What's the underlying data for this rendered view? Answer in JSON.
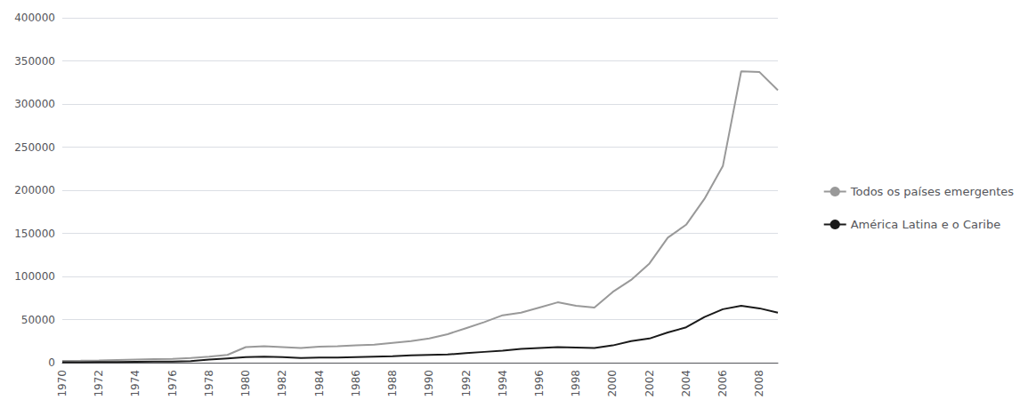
{
  "chart_data": {
    "type": "line",
    "x": [
      1970,
      1971,
      1972,
      1973,
      1974,
      1975,
      1976,
      1977,
      1978,
      1979,
      1980,
      1981,
      1982,
      1983,
      1984,
      1985,
      1986,
      1987,
      1988,
      1989,
      1990,
      1991,
      1992,
      1993,
      1994,
      1995,
      1996,
      1997,
      1998,
      1999,
      2000,
      2001,
      2002,
      2003,
      2004,
      2005,
      2006,
      2007,
      2008,
      2009
    ],
    "series": [
      {
        "name": "Todos os países emergentes",
        "color": "#999999",
        "values": [
          2000,
          2200,
          2500,
          3000,
          3500,
          4000,
          4500,
          5500,
          7000,
          9000,
          18000,
          19000,
          18000,
          17000,
          18500,
          19000,
          20000,
          21000,
          23000,
          25000,
          28000,
          33000,
          40000,
          47000,
          55000,
          58000,
          64000,
          70000,
          66000,
          64000,
          82000,
          96000,
          115000,
          145000,
          160000,
          190000,
          228000,
          338000,
          337000,
          316000
        ]
      },
      {
        "name": "América Latina e o Caribe",
        "color": "#1a1a1a",
        "values": [
          500,
          600,
          700,
          800,
          1000,
          1200,
          1400,
          1800,
          3500,
          5000,
          6500,
          7000,
          6500,
          5500,
          5800,
          6000,
          6500,
          7000,
          7500,
          8500,
          9000,
          9500,
          11000,
          12500,
          14000,
          16000,
          17000,
          18000,
          17500,
          17000,
          20000,
          25000,
          28000,
          35000,
          41000,
          53000,
          62000,
          66000,
          63000,
          58000
        ]
      }
    ],
    "xlim": [
      1970,
      2009
    ],
    "xticks": [
      1970,
      1972,
      1974,
      1976,
      1978,
      1980,
      1982,
      1984,
      1986,
      1988,
      1990,
      1992,
      1994,
      1996,
      1998,
      2000,
      2002,
      2004,
      2006,
      2008
    ],
    "ylim": [
      0,
      400000
    ],
    "yticks": [
      0,
      50000,
      100000,
      150000,
      200000,
      250000,
      300000,
      350000,
      400000
    ],
    "grid": "y",
    "legend": "right"
  }
}
